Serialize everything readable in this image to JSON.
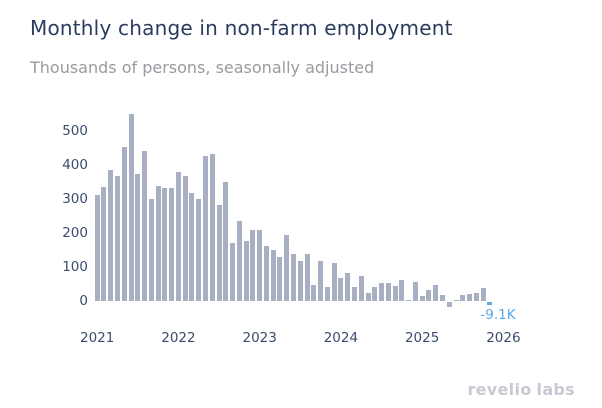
{
  "header": {
    "title": "Monthly change in non-farm employment",
    "subtitle": "Thousands of persons, seasonally adjusted"
  },
  "footer": {
    "logo_word1": "revelio",
    "logo_word2": "labs"
  },
  "colors": {
    "bar": "#a9afc2",
    "highlight": "#58a9e6",
    "title": "#2b3c5e",
    "subtitle": "#9a9aa0",
    "axis_text": "#3c4c6e",
    "logo": "#c7cad2"
  },
  "chart_data": {
    "type": "bar",
    "title": "Monthly change in non-farm employment",
    "subtitle": "Thousands of persons, seasonally adjusted",
    "unit": "thousands of persons",
    "grid": false,
    "ylim": [
      -20,
      560
    ],
    "y_ticks": [
      0,
      100,
      200,
      300,
      400,
      500
    ],
    "x_tick_labels": [
      "2021",
      "2022",
      "2023",
      "2024",
      "2025",
      "2026"
    ],
    "months": [
      "2021-01",
      "2021-02",
      "2021-03",
      "2021-04",
      "2021-05",
      "2021-06",
      "2021-07",
      "2021-08",
      "2021-09",
      "2021-10",
      "2021-11",
      "2021-12",
      "2022-01",
      "2022-02",
      "2022-03",
      "2022-04",
      "2022-05",
      "2022-06",
      "2022-07",
      "2022-08",
      "2022-09",
      "2022-10",
      "2022-11",
      "2022-12",
      "2023-01",
      "2023-02",
      "2023-03",
      "2023-04",
      "2023-05",
      "2023-06",
      "2023-07",
      "2023-08",
      "2023-09",
      "2023-10",
      "2023-11",
      "2023-12",
      "2024-01",
      "2024-02",
      "2024-03",
      "2024-04",
      "2024-05",
      "2024-06",
      "2024-07",
      "2024-08",
      "2024-09",
      "2024-10",
      "2024-11",
      "2024-12",
      "2025-01",
      "2025-02",
      "2025-03",
      "2025-04",
      "2025-05",
      "2025-06",
      "2025-07",
      "2025-08",
      "2025-09",
      "2025-10",
      "2025-11"
    ],
    "values": [
      310,
      335,
      383,
      366,
      452,
      547,
      373,
      440,
      299,
      337,
      331,
      331,
      379,
      366,
      316,
      298,
      424,
      430,
      281,
      348,
      169,
      234,
      176,
      209,
      208,
      160,
      151,
      128,
      193,
      137,
      117,
      139,
      47,
      118,
      40,
      111,
      66,
      81,
      42,
      73,
      24,
      42,
      52,
      52,
      45,
      62,
      3,
      55,
      16,
      32,
      47,
      18,
      -14,
      4,
      17,
      20,
      24,
      38,
      -9.1
    ],
    "last_point": {
      "month": "2025-11",
      "value": -9.1,
      "label": "-9.1K",
      "color": "#58a9e6"
    },
    "legend": null
  }
}
